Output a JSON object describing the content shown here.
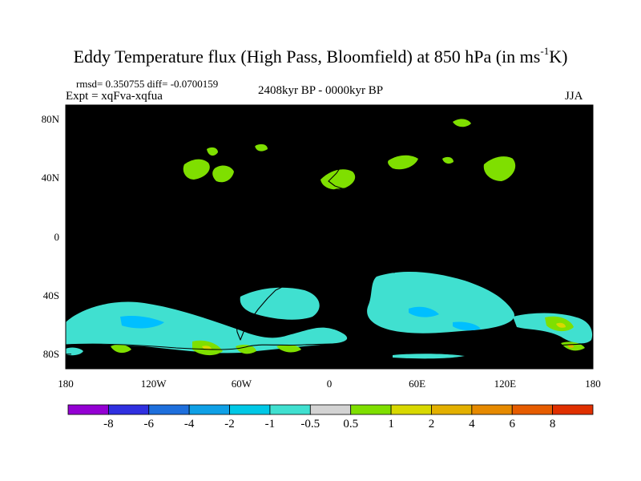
{
  "title_main": "Eddy Temperature flux (High Pass, Bloomfield) at 850 hPa (in ms",
  "title_sup": "-1",
  "title_end": "K)",
  "stats": "rmsd= 0.350755 diff= -0.0700159",
  "experiment": "Expt = xqFva-xqfua",
  "period": "2408kyr BP - 0000kyr BP",
  "season": "JJA",
  "map": {
    "lon_range": [
      -180,
      180
    ],
    "lat_range": [
      -90,
      90
    ],
    "x_ticks": [
      {
        "value": -180,
        "label": "180"
      },
      {
        "value": -120,
        "label": "120W"
      },
      {
        "value": -60,
        "label": "60W"
      },
      {
        "value": 0,
        "label": "0"
      },
      {
        "value": 60,
        "label": "60E"
      },
      {
        "value": 120,
        "label": "120E"
      },
      {
        "value": 180,
        "label": "180"
      }
    ],
    "y_ticks": [
      {
        "value": 80,
        "label": "80N"
      },
      {
        "value": 40,
        "label": "40N"
      },
      {
        "value": 0,
        "label": "0"
      },
      {
        "value": -40,
        "label": "40S"
      },
      {
        "value": -80,
        "label": "80S"
      }
    ],
    "background_color": "#d3d3d3",
    "coastline_color": "#000000",
    "anomaly_colors": {
      "negative_light": "#40e0d0",
      "negative_mid": "#00bfff",
      "positive_light": "#7fdf00",
      "positive_mid": "#d8d800",
      "positive_high": "#e3b000"
    }
  },
  "colorbar": {
    "colors": [
      "#9400d3",
      "#3030e0",
      "#1e6fdc",
      "#0fa0e6",
      "#00c8e6",
      "#40e0d0",
      "#d3d3d3",
      "#7fdf00",
      "#d8d800",
      "#e3b000",
      "#e68a00",
      "#e65c00",
      "#e03000"
    ],
    "labels": [
      "-8",
      "-6",
      "-4",
      "-2",
      "-1",
      "-0.5",
      "0.5",
      "1",
      "2",
      "4",
      "6",
      "8"
    ]
  }
}
